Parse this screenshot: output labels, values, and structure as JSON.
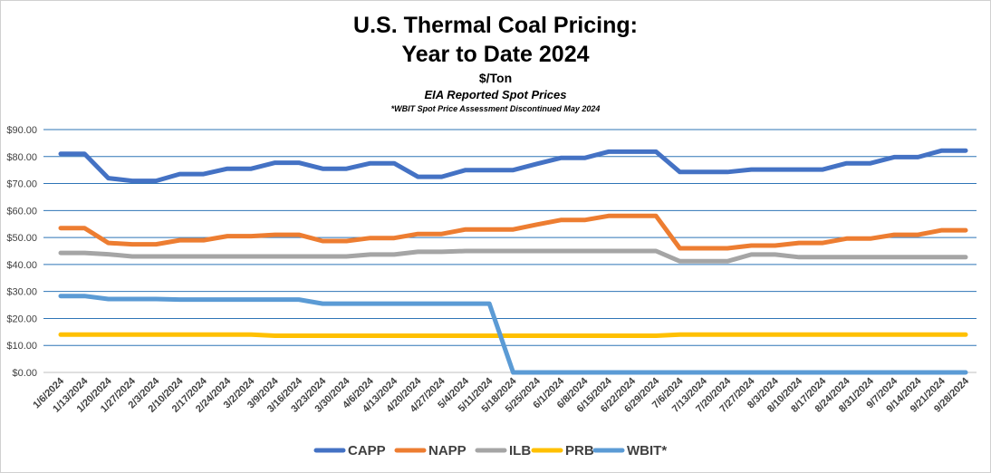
{
  "chart_data": {
    "type": "line",
    "title_line1": "U.S. Thermal Coal Pricing:",
    "title_line2": "Year to Date 2024",
    "subtitle": "$/Ton",
    "subtitle2": "EIA Reported Spot Prices",
    "note": "*WBIT Spot Price Assessment Discontinued May 2024",
    "ylim": [
      0,
      90
    ],
    "yticks": [
      "$0.00",
      "$10.00",
      "$20.00",
      "$30.00",
      "$40.00",
      "$50.00",
      "$60.00",
      "$70.00",
      "$80.00",
      "$90.00"
    ],
    "grid": true,
    "legend_position": "bottom",
    "x": [
      "1/6/2024",
      "1/13/2024",
      "1/20/2024",
      "1/27/2024",
      "2/3/2024",
      "2/10/2024",
      "2/17/2024",
      "2/24/2024",
      "3/2/2024",
      "3/9/2024",
      "3/16/2024",
      "3/23/2024",
      "3/30/2024",
      "4/6/2024",
      "4/13/2024",
      "4/20/2024",
      "4/27/2024",
      "5/4/2024",
      "5/11/2024",
      "5/18/2024",
      "5/25/2024",
      "6/1/2024",
      "6/8/2024",
      "6/15/2024",
      "6/22/2024",
      "6/29/2024",
      "7/6/2024",
      "7/13/2024",
      "7/20/2024",
      "7/27/2024",
      "8/3/2024",
      "8/10/2024",
      "8/17/2024",
      "8/24/2024",
      "8/31/2024",
      "9/7/2024",
      "9/14/2024",
      "9/21/2024",
      "9/28/2024"
    ],
    "series": [
      {
        "name": "CAPP",
        "color": "#4472C4",
        "values": [
          81,
          81,
          72,
          71,
          71,
          73.5,
          73.5,
          75.5,
          75.5,
          77.7,
          77.7,
          75.5,
          75.5,
          77.5,
          77.5,
          72.5,
          72.5,
          75,
          75,
          75,
          77.3,
          79.5,
          79.5,
          81.8,
          81.8,
          81.8,
          74.3,
          74.3,
          74.3,
          75.2,
          75.2,
          75.2,
          75.2,
          77.5,
          77.5,
          79.8,
          79.8,
          82.2,
          82.2
        ]
      },
      {
        "name": "NAPP",
        "color": "#ED7D31",
        "values": [
          53.5,
          53.5,
          48,
          47.5,
          47.5,
          49,
          49,
          50.5,
          50.5,
          51,
          51,
          48.7,
          48.7,
          49.8,
          49.8,
          51.3,
          51.3,
          53,
          53,
          53,
          54.8,
          56.5,
          56.5,
          58,
          58,
          58,
          46,
          46,
          46,
          47,
          47,
          48,
          48,
          49.6,
          49.6,
          51,
          51,
          52.7,
          52.7
        ]
      },
      {
        "name": "ILB",
        "color": "#A5A5A5",
        "values": [
          44.3,
          44.3,
          43.8,
          43,
          43,
          43,
          43,
          43,
          43,
          43,
          43,
          43,
          43,
          43.7,
          43.7,
          44.7,
          44.7,
          45,
          45,
          45,
          45,
          45,
          45,
          45,
          45,
          45,
          41.2,
          41.2,
          41.2,
          43.7,
          43.7,
          42.7,
          42.7,
          42.7,
          42.7,
          42.7,
          42.7,
          42.7,
          42.7
        ]
      },
      {
        "name": "PRB",
        "color": "#FFC000",
        "values": [
          14,
          14,
          14,
          14,
          14,
          14,
          14,
          14,
          14,
          13.6,
          13.6,
          13.6,
          13.6,
          13.6,
          13.6,
          13.6,
          13.6,
          13.6,
          13.6,
          13.6,
          13.6,
          13.6,
          13.6,
          13.6,
          13.6,
          13.6,
          14,
          14,
          14,
          14,
          14,
          14,
          14,
          14,
          14,
          14,
          14,
          14,
          14
        ]
      },
      {
        "name": "WBIT*",
        "color": "#5B9BD5",
        "values": [
          28.3,
          28.3,
          27.2,
          27.2,
          27.2,
          27,
          27,
          27,
          27,
          27,
          27,
          25.5,
          25.5,
          25.5,
          25.5,
          25.5,
          25.5,
          25.5,
          25.5,
          0,
          0,
          0,
          0,
          0,
          0,
          0,
          0,
          0,
          0,
          0,
          0,
          0,
          0,
          0,
          0,
          0,
          0,
          0,
          0
        ]
      }
    ]
  }
}
